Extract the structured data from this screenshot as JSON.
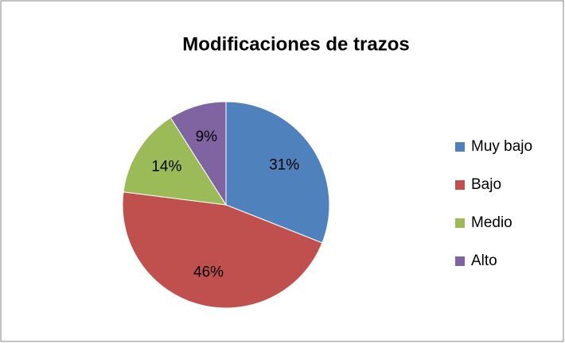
{
  "chart_data": {
    "type": "pie",
    "title": "Modificaciones de trazos",
    "categories": [
      "Muy bajo",
      "Bajo",
      "Medio",
      "Alto"
    ],
    "values": [
      31,
      46,
      14,
      9
    ],
    "value_labels": [
      "31%",
      "46%",
      "14%",
      "9%"
    ],
    "colors": [
      "#4f81bd",
      "#c0504d",
      "#9bbb59",
      "#8064a2"
    ],
    "legend": "right"
  }
}
